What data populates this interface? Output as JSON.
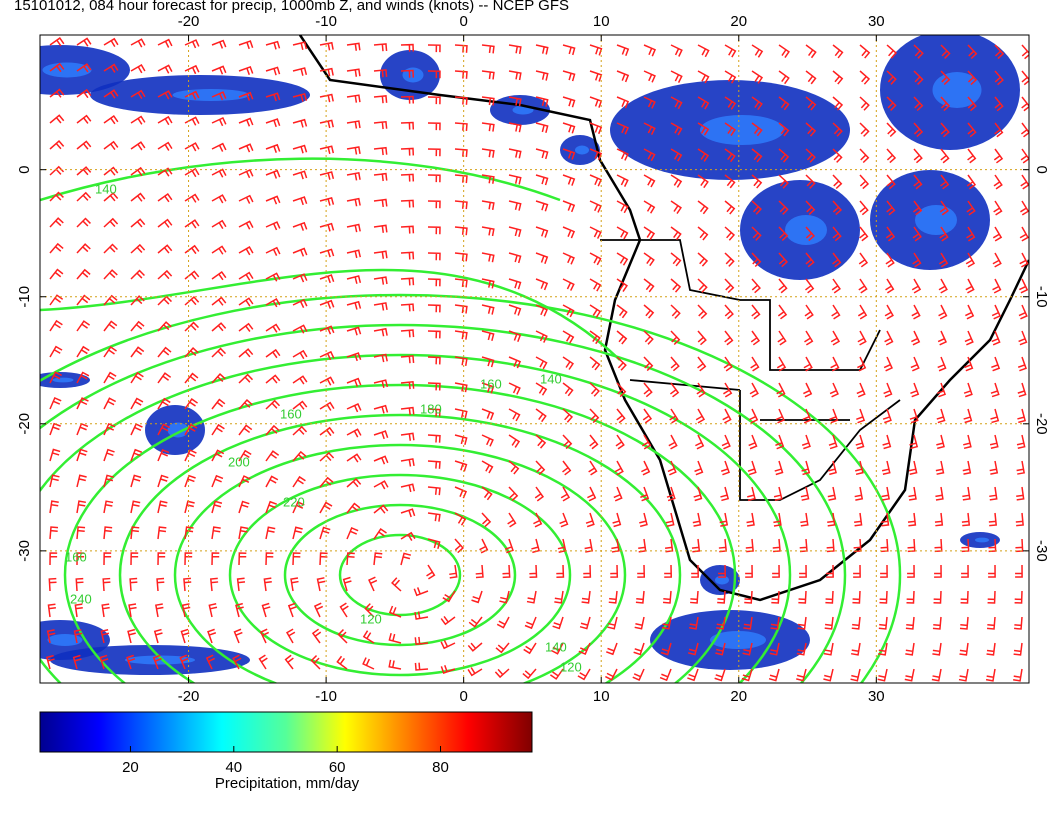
{
  "header": {
    "title": "15101012, 084 hour forecast for precip, 1000mb Z, and winds (knots) -- NCEP GFS"
  },
  "map": {
    "lon_range": [
      -30.8,
      41.1
    ],
    "lat_range": [
      10.6,
      -40.4
    ],
    "lon_ticks": [
      -20,
      -10,
      0,
      10,
      20,
      30
    ],
    "lat_ticks": [
      0,
      -10,
      -20,
      -30
    ],
    "grid": true,
    "contour_labels": [
      140,
      160,
      200,
      220,
      240,
      160,
      140,
      180,
      160,
      120,
      140,
      120
    ]
  },
  "colorbar": {
    "range": [
      2.5,
      97.7
    ],
    "ticks": [
      20,
      40,
      60,
      80
    ],
    "label": "Precipitation, mm/day"
  }
}
